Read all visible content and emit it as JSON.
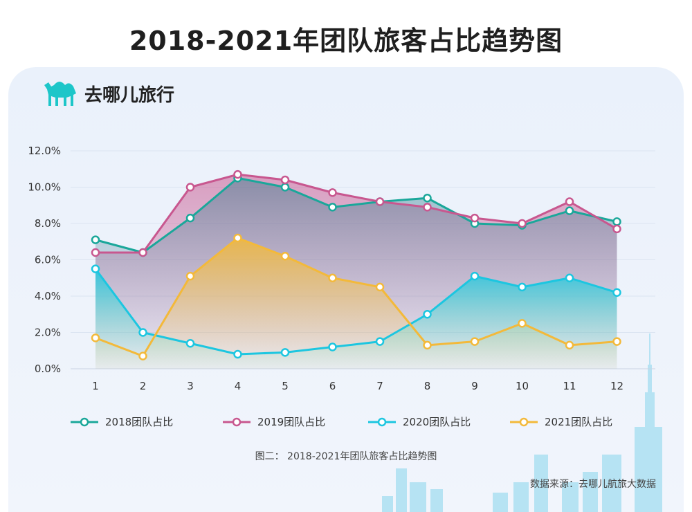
{
  "title": "2018-2021年团队旅客占比趋势图",
  "brand": "去哪儿旅行",
  "caption": "图二： 2018-2021年团队旅客占比趋势图",
  "source": "数据来源：去哪儿航旅大数据",
  "chart_data": {
    "type": "line",
    "x": [
      1,
      2,
      3,
      4,
      5,
      6,
      7,
      8,
      9,
      10,
      11,
      12
    ],
    "y_ticks": [
      "0.0%",
      "2.0%",
      "4.0%",
      "6.0%",
      "8.0%",
      "10.0%",
      "12.0%"
    ],
    "ylim": [
      0,
      12
    ],
    "grid": true,
    "legend_position": "bottom",
    "series": [
      {
        "name": "2018团队占比",
        "color": "#1aa79a",
        "values": [
          7.1,
          6.4,
          8.3,
          10.5,
          10.0,
          8.9,
          9.2,
          9.4,
          8.0,
          7.9,
          8.7,
          8.1
        ]
      },
      {
        "name": "2019团队占比",
        "color": "#c8578f",
        "values": [
          6.4,
          6.4,
          10.0,
          10.7,
          10.4,
          9.7,
          9.2,
          8.9,
          8.3,
          8.0,
          9.2,
          7.7
        ]
      },
      {
        "name": "2020团队占比",
        "color": "#1cc6e0",
        "values": [
          5.5,
          2.0,
          1.4,
          0.8,
          0.9,
          1.2,
          1.5,
          3.0,
          5.1,
          4.5,
          5.0,
          4.2
        ]
      },
      {
        "name": "2021团队占比",
        "color": "#f3b93a",
        "values": [
          1.7,
          0.7,
          5.1,
          7.2,
          6.2,
          5.0,
          4.5,
          1.3,
          1.5,
          2.5,
          1.3,
          1.5
        ]
      }
    ]
  }
}
